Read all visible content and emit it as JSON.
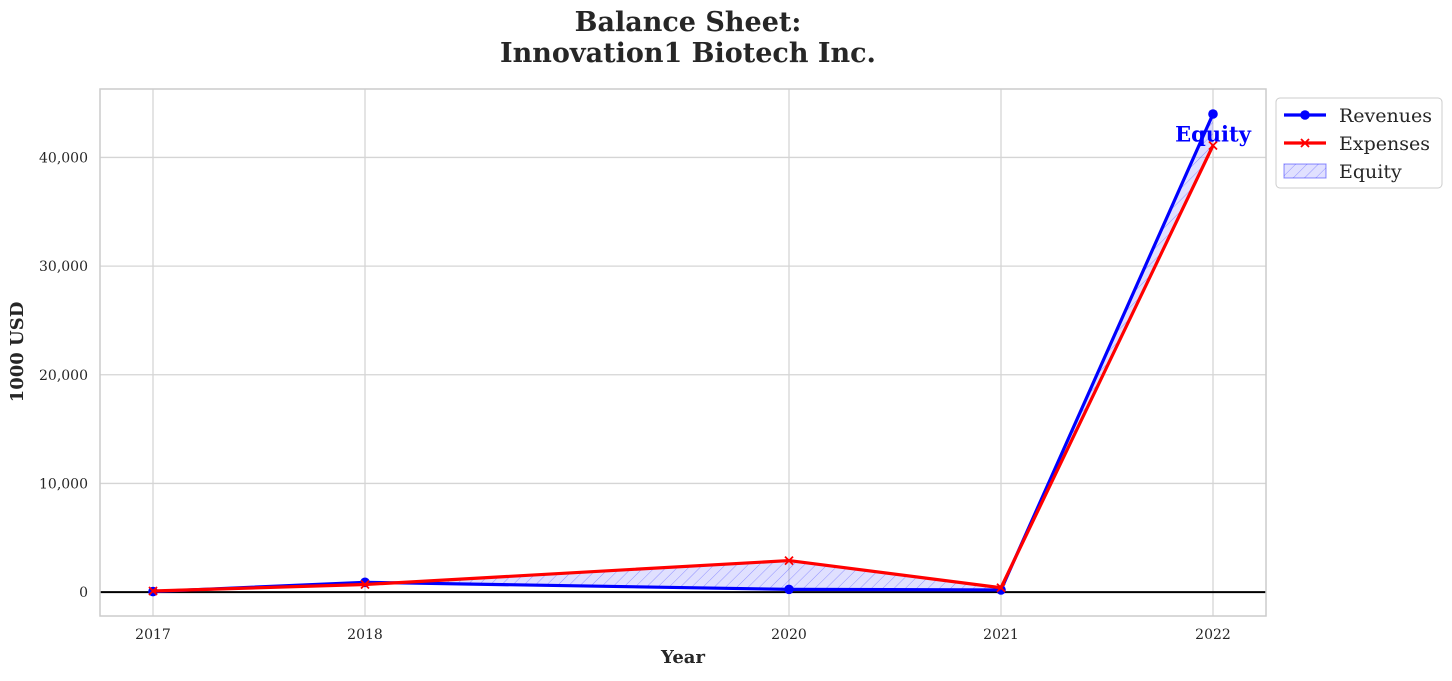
{
  "chart_data": {
    "type": "line",
    "title": "Balance Sheet:",
    "subtitle": "Innovation1 Biotech Inc.",
    "xlabel": "Year",
    "ylabel": "1000 USD",
    "x": [
      2017,
      2018,
      2020,
      2021,
      2022
    ],
    "x_tick_labels": [
      "2017",
      "2018",
      "2020",
      "2021",
      "2022"
    ],
    "xlim": [
      2016.75,
      2022.25
    ],
    "ylim": [
      -2200,
      46300
    ],
    "y_ticks": [
      0,
      10000,
      20000,
      30000,
      40000
    ],
    "y_tick_labels": [
      "0",
      "10,000",
      "20,000",
      "30,000",
      "40,000"
    ],
    "grid": true,
    "zero_line": true,
    "series": [
      {
        "name": "Revenues",
        "color": "#0000ff",
        "marker": "circle",
        "values": [
          50,
          900,
          250,
          200,
          44000
        ]
      },
      {
        "name": "Expenses",
        "color": "#ff0000",
        "marker": "x",
        "values": [
          100,
          700,
          2900,
          400,
          41100
        ]
      }
    ],
    "fill_between": {
      "name": "Equity",
      "color": "#0000ff",
      "hatch": "diagonal",
      "between": [
        "Revenues",
        "Expenses"
      ]
    },
    "annotation": {
      "text": "Equity",
      "x": 2022,
      "y": 42200,
      "color": "#0000ff"
    },
    "legend_placement": "outside-top-right",
    "legend": [
      "Revenues",
      "Expenses",
      "Equity"
    ]
  }
}
